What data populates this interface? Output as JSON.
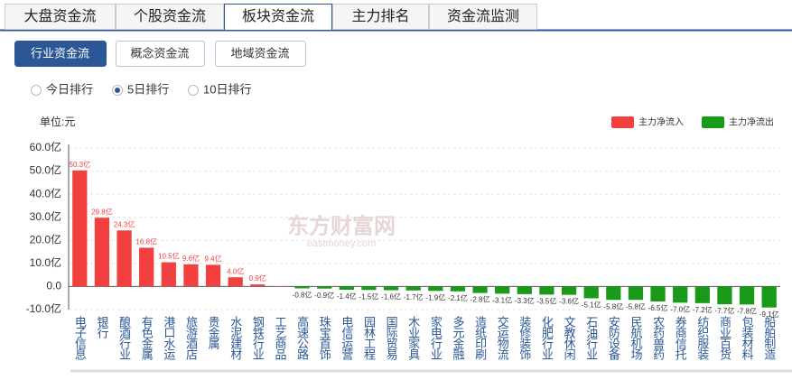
{
  "tabs": [
    "大盘资金流",
    "个股资金流",
    "板块资金流",
    "主力排名",
    "资金流监测"
  ],
  "buttons": [
    "行业资金流",
    "概念资金流",
    "地域资金流"
  ],
  "radios": [
    "今日排行",
    "5日排行",
    "10日排行"
  ],
  "watermark": {
    "cn": "东方财富网",
    "en": "eastmoney.com"
  },
  "chart_data": {
    "type": "bar",
    "unit_label": "单位:元",
    "legend": [
      {
        "name": "主力净流入",
        "color": "#f23f3f"
      },
      {
        "name": "主力净流出",
        "color": "#199a19"
      }
    ],
    "categories": [
      "电子信息",
      "银行",
      "酿酒行业",
      "有色金属",
      "港口水运",
      "旅游酒店",
      "贵金属",
      "水泥建材",
      "钢铁行业",
      "工艺商品",
      "高速公路",
      "珠宝首饰",
      "电信运营",
      "园林工程",
      "国际贸易",
      "木业家具",
      "家电行业",
      "多元金融",
      "造纸印刷",
      "交运物流",
      "装修装饰",
      "化肥行业",
      "文教休闲",
      "石油行业",
      "安防设备",
      "民航机场",
      "农药兽药",
      "券商信托",
      "纺织服装",
      "商业百货",
      "包装材料",
      "船舶制造"
    ],
    "values": [
      50.3,
      29.8,
      24.3,
      16.8,
      10.5,
      9.6,
      9.4,
      4.0,
      0.9,
      0.1,
      -0.8,
      -0.9,
      -1.4,
      -1.5,
      -1.6,
      -1.7,
      -1.9,
      -2.1,
      -2.8,
      -3.1,
      -3.3,
      -3.5,
      -3.6,
      -5.1,
      -5.8,
      -5.8,
      -6.5,
      -7.0,
      -7.2,
      -7.7,
      -7.8,
      -9.1
    ],
    "value_labels": [
      "50.3亿",
      "29.8亿",
      "24.3亿",
      "16.8亿",
      "10.5亿",
      "9.6亿",
      "9.4亿",
      "4.0亿",
      "0.9亿",
      null,
      "-0.8亿",
      "-0.9亿",
      "-1.4亿",
      "-1.5亿",
      "-1.6亿",
      "-1.7亿",
      "-1.9亿",
      "-2.1亿",
      "-2.8亿",
      "-3.1亿",
      "-3.3亿",
      "-3.5亿",
      "-3.6亿",
      "-5.1亿",
      "-5.8亿",
      "-5.8亿",
      "-6.5亿",
      "-7.0亿",
      "-7.2亿",
      "-7.7亿",
      "-7.8亿",
      "-9.1亿"
    ],
    "ylim": [
      -10,
      60
    ],
    "yticks": [
      {
        "value": -10,
        "label": "-10.0亿"
      },
      {
        "value": 0,
        "label": "0.0"
      },
      {
        "value": 10,
        "label": "10.0亿"
      },
      {
        "value": 20,
        "label": "20.0亿"
      },
      {
        "value": 30,
        "label": "30.0亿"
      },
      {
        "value": 40,
        "label": "40.0亿"
      },
      {
        "value": 50,
        "label": "50.0亿"
      },
      {
        "value": 60,
        "label": "60.0亿"
      }
    ],
    "grid": true
  }
}
